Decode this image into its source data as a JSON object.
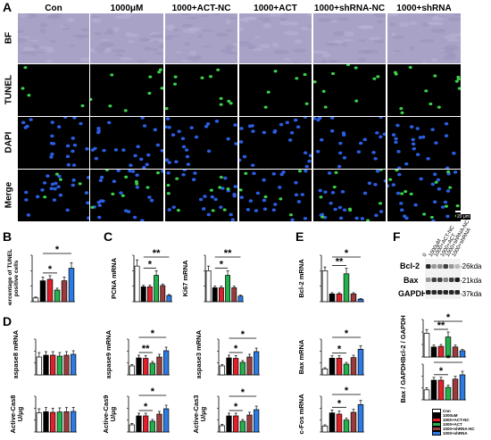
{
  "panel_a": {
    "letter": "A",
    "columns": [
      "Con",
      "1000μM",
      "1000+ACT-NC",
      "1000+ACT",
      "1000+shRNA-NC",
      "1000+shRNA"
    ],
    "rows": [
      "BF",
      "TUNEL",
      "DAPI",
      "Merge"
    ],
    "scale_bar": "20 μm",
    "tunel_counts": [
      4,
      9,
      10,
      6,
      9,
      13
    ]
  },
  "panel_letters": {
    "b": "B",
    "c": "C",
    "d": "D",
    "e": "E",
    "f": "F"
  },
  "legend": [
    "Con",
    "1000uM",
    "1000+ACT-NC",
    "1000+ACT",
    "1000+shRNA-NC",
    "1000+shRNA"
  ],
  "colors": [
    "#ffffff",
    "#000000",
    "#e3202a",
    "#22b14c",
    "#9b3b3b",
    "#2c7be5"
  ],
  "western": {
    "lanes": [
      "0",
      "1000μM",
      "1000+ACT-NC",
      "1000+ACT",
      "1000+shRNA-NC",
      "1000+shRNA"
    ],
    "bands": [
      {
        "name": "Bcl-2",
        "kda": "-26kda"
      },
      {
        "name": "Bax",
        "kda": "-21kda"
      },
      {
        "name": "GAPDH",
        "kda": "-37kda"
      }
    ]
  },
  "chart_data": [
    {
      "id": "B1",
      "type": "bar",
      "ylabel": "percentage of TUNEL positive cells",
      "values": [
        8,
        45,
        48,
        25,
        45,
        72
      ],
      "errors": [
        2,
        8,
        8,
        4,
        8,
        12
      ],
      "ylim": [
        0,
        100
      ],
      "sig": [
        {
          "a": 1,
          "b": 3,
          "s": "*"
        },
        {
          "a": 1,
          "b": 5,
          "s": "*"
        }
      ]
    },
    {
      "id": "C1",
      "type": "bar",
      "ylabel": "PCNA mRNA",
      "values": [
        1.15,
        0.48,
        0.48,
        0.85,
        0.52,
        0.2
      ],
      "errors": [
        0.2,
        0.05,
        0.05,
        0.15,
        0.05,
        0.03
      ],
      "ylim": [
        0,
        1.5
      ],
      "sig": [
        {
          "a": 1,
          "b": 3,
          "s": "*"
        },
        {
          "a": 1,
          "b": 5,
          "s": "**"
        }
      ]
    },
    {
      "id": "C2",
      "type": "bar",
      "ylabel": "Ki67 mRNA",
      "values": [
        1.0,
        0.45,
        0.45,
        0.85,
        0.45,
        0.18
      ],
      "errors": [
        0.15,
        0.05,
        0.05,
        0.15,
        0.05,
        0.03
      ],
      "ylim": [
        0,
        1.5
      ],
      "sig": [
        {
          "a": 1,
          "b": 3,
          "s": "*"
        },
        {
          "a": 1,
          "b": 5,
          "s": "**"
        }
      ]
    },
    {
      "id": "E1",
      "type": "bar",
      "ylabel": "Bcl-2 mRNA",
      "values": [
        1.0,
        0.25,
        0.25,
        0.9,
        0.25,
        0.08
      ],
      "errors": [
        0.12,
        0.04,
        0.04,
        0.18,
        0.04,
        0.02
      ],
      "ylim": [
        0,
        1.5
      ],
      "sig": [
        {
          "a": 1,
          "b": 3,
          "s": "**"
        },
        {
          "a": 1,
          "b": 5,
          "s": "*"
        }
      ]
    },
    {
      "id": "D1",
      "type": "bar",
      "ylabel": "Caspase8 mRNA",
      "values": [
        1.0,
        1.1,
        1.1,
        1.05,
        1.1,
        1.15
      ],
      "errors": [
        0.25,
        0.2,
        0.2,
        0.2,
        0.2,
        0.2
      ],
      "ylim": [
        0,
        2
      ],
      "sig": []
    },
    {
      "id": "D2",
      "type": "bar",
      "ylabel": "Caspase9 mRNA",
      "values": [
        1.0,
        1.9,
        1.85,
        1.3,
        2.0,
        2.7
      ],
      "errors": [
        0.15,
        0.3,
        0.3,
        0.2,
        0.3,
        0.4
      ],
      "ylim": [
        0,
        4
      ],
      "sig": [
        {
          "a": 1,
          "b": 3,
          "s": "**"
        },
        {
          "a": 1,
          "b": 5,
          "s": "*"
        }
      ]
    },
    {
      "id": "D3",
      "type": "bar",
      "ylabel": "Caspase3 mRNA",
      "values": [
        1.0,
        1.9,
        1.85,
        1.4,
        2.0,
        2.6
      ],
      "errors": [
        0.15,
        0.3,
        0.3,
        0.2,
        0.3,
        0.4
      ],
      "ylim": [
        0,
        4
      ],
      "sig": [
        {
          "a": 1,
          "b": 3,
          "s": "*"
        },
        {
          "a": 1,
          "b": 5,
          "s": "*"
        }
      ]
    },
    {
      "id": "E2",
      "type": "bar",
      "ylabel": "Bax mRNA",
      "values": [
        1.0,
        2.8,
        2.8,
        1.8,
        2.9,
        4.3
      ],
      "errors": [
        0.2,
        0.4,
        0.4,
        0.3,
        0.4,
        0.6
      ],
      "ylim": [
        0,
        6
      ],
      "sig": [
        {
          "a": 1,
          "b": 3,
          "s": "*"
        },
        {
          "a": 1,
          "b": 5,
          "s": "*"
        }
      ]
    },
    {
      "id": "D4",
      "type": "bar",
      "ylabel": "Active-Cas8 U/μg",
      "values": [
        320,
        340,
        330,
        335,
        340,
        345
      ],
      "errors": [
        70,
        70,
        70,
        70,
        70,
        70
      ],
      "ylim": [
        0,
        600
      ],
      "sig": []
    },
    {
      "id": "D5",
      "type": "bar",
      "ylabel": "Active-Cas9 U/μg",
      "values": [
        0.4,
        0.9,
        0.9,
        0.6,
        1.0,
        1.3
      ],
      "errors": [
        0.08,
        0.15,
        0.15,
        0.1,
        0.15,
        0.2
      ],
      "ylim": [
        0,
        2
      ],
      "sig": [
        {
          "a": 1,
          "b": 3,
          "s": "*"
        },
        {
          "a": 1,
          "b": 5,
          "s": "*"
        }
      ]
    },
    {
      "id": "D6",
      "type": "bar",
      "ylabel": "Active-Cas3 U/μg",
      "values": [
        0.35,
        0.9,
        0.9,
        0.6,
        0.95,
        1.25
      ],
      "errors": [
        0.08,
        0.15,
        0.15,
        0.1,
        0.15,
        0.2
      ],
      "ylim": [
        0,
        2
      ],
      "sig": [
        {
          "a": 1,
          "b": 3,
          "s": "*"
        },
        {
          "a": 1,
          "b": 5,
          "s": "*"
        }
      ]
    },
    {
      "id": "E3",
      "type": "bar",
      "ylabel": "c-Fos mRNA",
      "values": [
        1.0,
        3.2,
        3.0,
        2.0,
        3.3,
        4.6
      ],
      "errors": [
        0.2,
        0.5,
        0.5,
        0.3,
        0.5,
        0.7
      ],
      "ylim": [
        0,
        6
      ],
      "sig": [
        {
          "a": 1,
          "b": 3,
          "s": "*"
        },
        {
          "a": 1,
          "b": 5,
          "s": "*"
        }
      ]
    },
    {
      "id": "F1",
      "type": "bar",
      "ylabel": "Bcl-2 / GAPDH",
      "values": [
        38,
        16,
        17,
        32,
        16,
        10
      ],
      "errors": [
        6,
        3,
        3,
        8,
        3,
        2
      ],
      "ylim": [
        0,
        60
      ],
      "sig": [
        {
          "a": 1,
          "b": 3,
          "s": "**"
        },
        {
          "a": 1,
          "b": 5,
          "s": "*"
        }
      ]
    },
    {
      "id": "F2",
      "type": "bar",
      "ylabel": "Bax / GAPDH",
      "values": [
        28,
        55,
        55,
        35,
        58,
        70
      ],
      "errors": [
        6,
        8,
        8,
        6,
        8,
        10
      ],
      "ylim": [
        0,
        100
      ],
      "sig": [
        {
          "a": 1,
          "b": 3,
          "s": "*"
        },
        {
          "a": 1,
          "b": 5,
          "s": "*"
        }
      ]
    }
  ]
}
